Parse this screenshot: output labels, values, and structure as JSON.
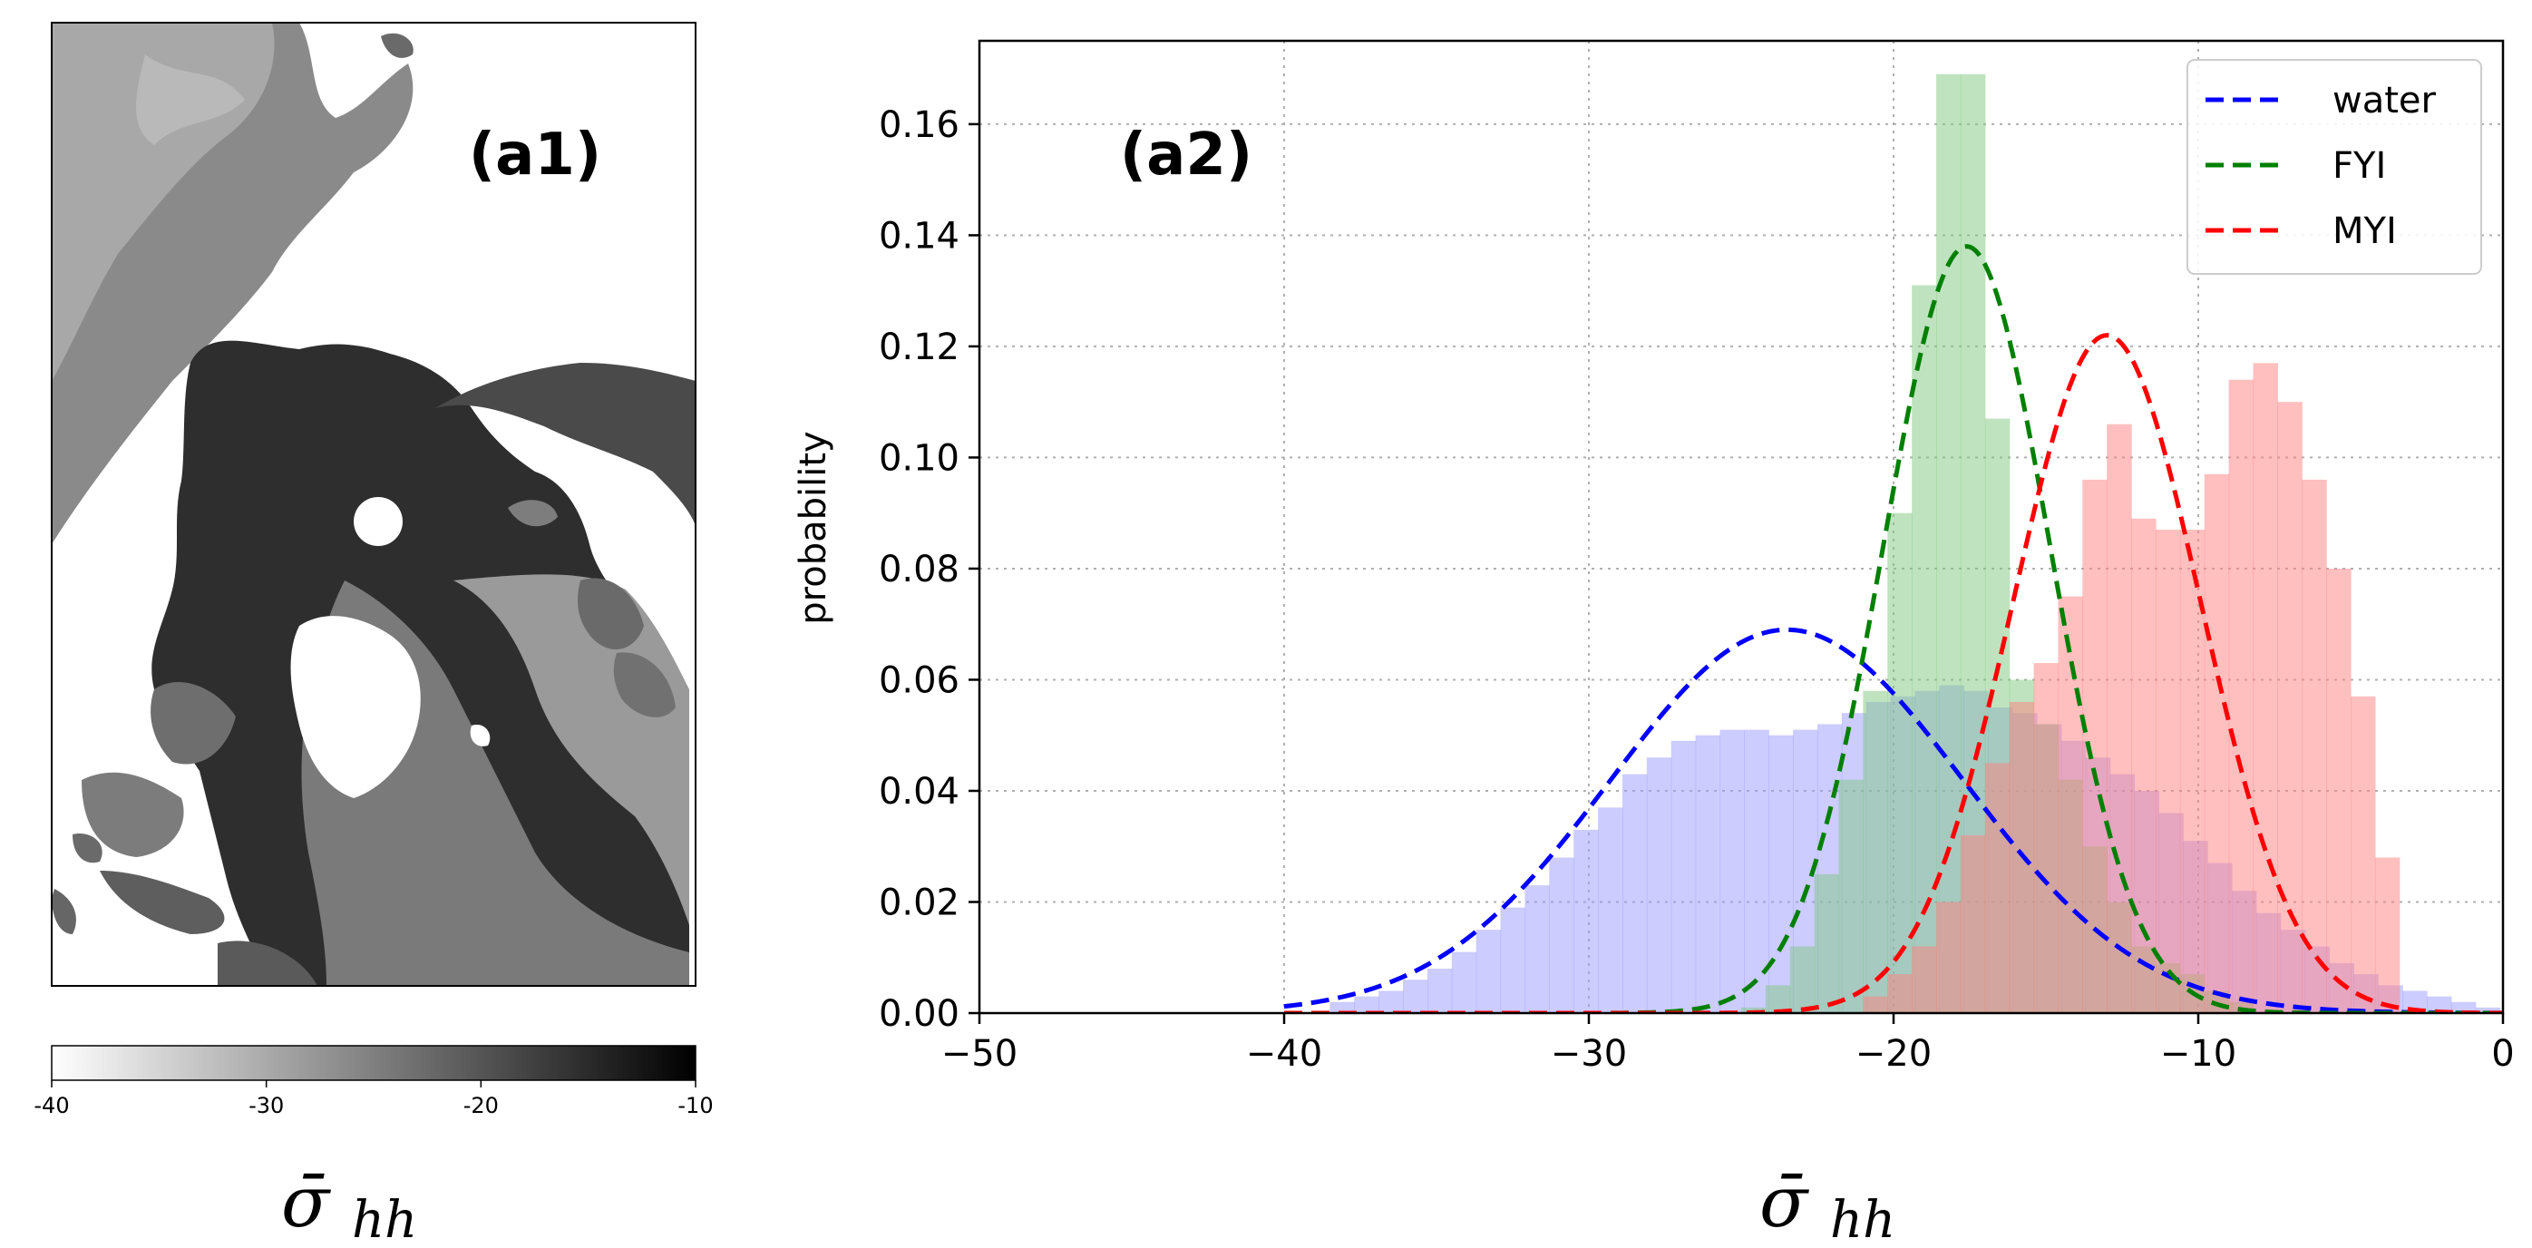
{
  "chart_data": [
    {
      "type": "heatmap",
      "panel_label": "(a1)",
      "colorbar": {
        "ticks": [
          "-40",
          "-30",
          "-20",
          "-10"
        ],
        "range": [
          -40,
          -10
        ],
        "cmap": "gray_r",
        "label_main": "σ̄",
        "label_sub": "hh"
      }
    },
    {
      "type": "bar",
      "panel_label": "(a2)",
      "ylabel": "probability",
      "xlabel_main": "σ̄",
      "xlabel_sub": "hh",
      "xlim": [
        -50,
        0
      ],
      "ylim": [
        0,
        0.175
      ],
      "grid": true,
      "legend_position": "top-right",
      "x_ticks": [
        {
          "value": -50,
          "label": "−50"
        },
        {
          "value": -40,
          "label": "−40"
        },
        {
          "value": -30,
          "label": "−30"
        },
        {
          "value": -20,
          "label": "−20"
        },
        {
          "value": -10,
          "label": "−10"
        },
        {
          "value": 0,
          "label": "0"
        }
      ],
      "y_ticks": [
        {
          "value": 0.0,
          "label": "0.00"
        },
        {
          "value": 0.02,
          "label": "0.02"
        },
        {
          "value": 0.04,
          "label": "0.04"
        },
        {
          "value": 0.06,
          "label": "0.06"
        },
        {
          "value": 0.08,
          "label": "0.08"
        },
        {
          "value": 0.1,
          "label": "0.10"
        },
        {
          "value": 0.12,
          "label": "0.12"
        },
        {
          "value": 0.14,
          "label": "0.14"
        },
        {
          "value": 0.16,
          "label": "0.16"
        }
      ],
      "series": [
        {
          "name": "water",
          "color": "#0000ff",
          "hist_color": "#9999ff",
          "hist_opacity": 0.5,
          "curve": {
            "mean": -23.5,
            "std": 5.8,
            "peak": 0.069
          },
          "hist": {
            "start": -38.5,
            "width": 0.8,
            "values": [
              0.002,
              0.003,
              0.004,
              0.006,
              0.008,
              0.011,
              0.015,
              0.019,
              0.023,
              0.028,
              0.033,
              0.037,
              0.043,
              0.046,
              0.049,
              0.05,
              0.051,
              0.051,
              0.05,
              0.051,
              0.052,
              0.054,
              0.056,
              0.057,
              0.058,
              0.059,
              0.058,
              0.055,
              0.054,
              0.052,
              0.049,
              0.046,
              0.043,
              0.04,
              0.036,
              0.031,
              0.027,
              0.022,
              0.018,
              0.015,
              0.012,
              0.009,
              0.007,
              0.005,
              0.004,
              0.003,
              0.002,
              0.001
            ]
          }
        },
        {
          "name": "FYI",
          "color": "#008000",
          "hist_color": "#7fc77f",
          "hist_opacity": 0.5,
          "curve": {
            "mean": -17.6,
            "std": 2.75,
            "peak": 0.138
          },
          "hist": {
            "start": -25.0,
            "width": 0.8,
            "values": [
              0.001,
              0.005,
              0.012,
              0.025,
              0.042,
              0.058,
              0.09,
              0.131,
              0.169,
              0.169,
              0.107,
              0.06,
              0.052,
              0.042,
              0.03,
              0.02,
              0.012,
              0.009,
              0.007,
              0.004,
              0.002
            ]
          }
        },
        {
          "name": "MYI",
          "color": "#ff0000",
          "hist_color": "#ff8080",
          "hist_opacity": 0.5,
          "curve": {
            "mean": -13.0,
            "std": 3.08,
            "peak": 0.122
          },
          "hist": {
            "start": -21.0,
            "width": 0.8,
            "values": [
              0.003,
              0.007,
              0.012,
              0.02,
              0.032,
              0.045,
              0.056,
              0.063,
              0.075,
              0.096,
              0.106,
              0.089,
              0.087,
              0.087,
              0.097,
              0.114,
              0.117,
              0.11,
              0.096,
              0.08,
              0.057,
              0.028
            ]
          }
        }
      ]
    }
  ]
}
